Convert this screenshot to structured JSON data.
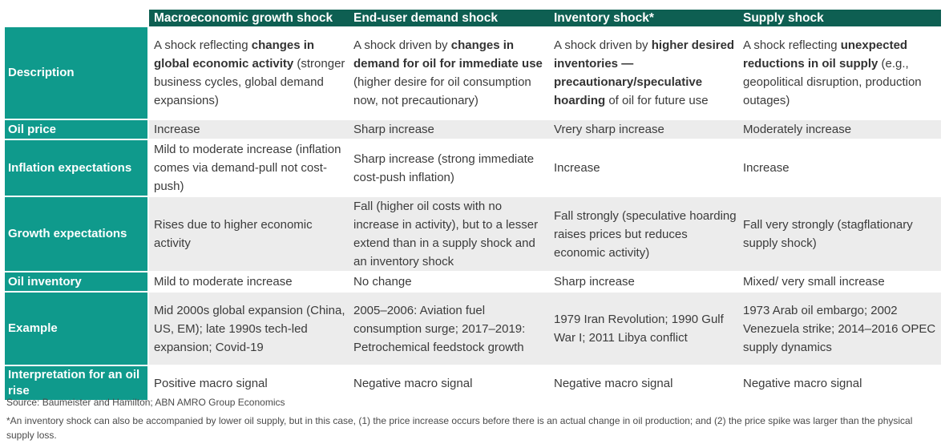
{
  "table": {
    "columns": [
      "Macroeconomic growth shock",
      "End-user demand shock",
      "Inventory shock*",
      "Supply shock"
    ],
    "rows": [
      {
        "label": "Description",
        "cells": [
          [
            {
              "t": "A shock reflecting "
            },
            {
              "t": "changes in global economic activity",
              "b": true
            },
            {
              "t": " (stronger business cycles, global demand expansions)"
            }
          ],
          [
            {
              "t": "A shock driven by "
            },
            {
              "t": "changes in demand for oil for immediate use",
              "b": true
            },
            {
              "t": " (higher desire for oil consumption now, not precautionary)"
            }
          ],
          [
            {
              "t": "A shock driven by "
            },
            {
              "t": "higher desired inventories — precautionary/speculative hoarding",
              "b": true
            },
            {
              "t": " of oil for future use"
            }
          ],
          [
            {
              "t": "A shock reflecting "
            },
            {
              "t": "unexpected reductions in oil supply",
              "b": true
            },
            {
              "t": " (e.g., geopolitical disruption, production outages)"
            }
          ]
        ]
      },
      {
        "label": "Oil price",
        "cells": [
          [
            {
              "t": "Increase"
            }
          ],
          [
            {
              "t": "Sharp increase"
            }
          ],
          [
            {
              "t": "Vrery sharp increase"
            }
          ],
          [
            {
              "t": "Moderately increase"
            }
          ]
        ]
      },
      {
        "label": "Inflation expectations",
        "cells": [
          [
            {
              "t": "Mild to moderate increase (inflation comes via demand-pull not cost-push)"
            }
          ],
          [
            {
              "t": "Sharp increase (strong immediate cost-push inflation)"
            }
          ],
          [
            {
              "t": "Increase"
            }
          ],
          [
            {
              "t": "Increase"
            }
          ]
        ]
      },
      {
        "label": "Growth expectations",
        "cells": [
          [
            {
              "t": "Rises due to higher economic activity"
            }
          ],
          [
            {
              "t": "Fall (higher oil costs with no increase in activity), but to a lesser extend than in a supply shock and an inventory shock"
            }
          ],
          [
            {
              "t": "Fall strongly (speculative hoarding raises prices but reduces economic activity)"
            }
          ],
          [
            {
              "t": "Fall very strongly (stagflationary supply shock)"
            }
          ]
        ]
      },
      {
        "label": "Oil inventory",
        "cells": [
          [
            {
              "t": "Mild to moderate increase"
            }
          ],
          [
            {
              "t": "No change"
            }
          ],
          [
            {
              "t": "Sharp increase"
            }
          ],
          [
            {
              "t": "Mixed/ very small increase"
            }
          ]
        ]
      },
      {
        "label": "Example",
        "cells": [
          [
            {
              "t": "Mid 2000s global expansion (China, US, EM); late 1990s tech-led expansion; Covid-19"
            }
          ],
          [
            {
              "t": "2005–2006: Aviation fuel consumption surge; 2017–2019: Petrochemical feedstock growth"
            }
          ],
          [
            {
              "t": "1979 Iran Revolution; 1990 Gulf War I; 2011 Libya conflict"
            }
          ],
          [
            {
              "t": "1973 Arab oil embargo; 2002 Venezuela strike; 2014–2016 OPEC supply dynamics"
            }
          ]
        ]
      },
      {
        "label": "Interpretation for an oil rise",
        "cells": [
          [
            {
              "t": "Positive macro signal"
            }
          ],
          [
            {
              "t": "Negative macro signal"
            }
          ],
          [
            {
              "t": "Negative macro signal"
            }
          ],
          [
            {
              "t": "Negative macro signal"
            }
          ]
        ]
      }
    ]
  },
  "source": "Source: Baumeister and Hamilton; ABN AMRO Group Economics",
  "footnote": "*An inventory shock can also be accompanied by lower oil supply, but in this case, (1) the price increase occurs before there is an actual change in oil production; and (2) the price spike was larger than the physical supply loss."
}
